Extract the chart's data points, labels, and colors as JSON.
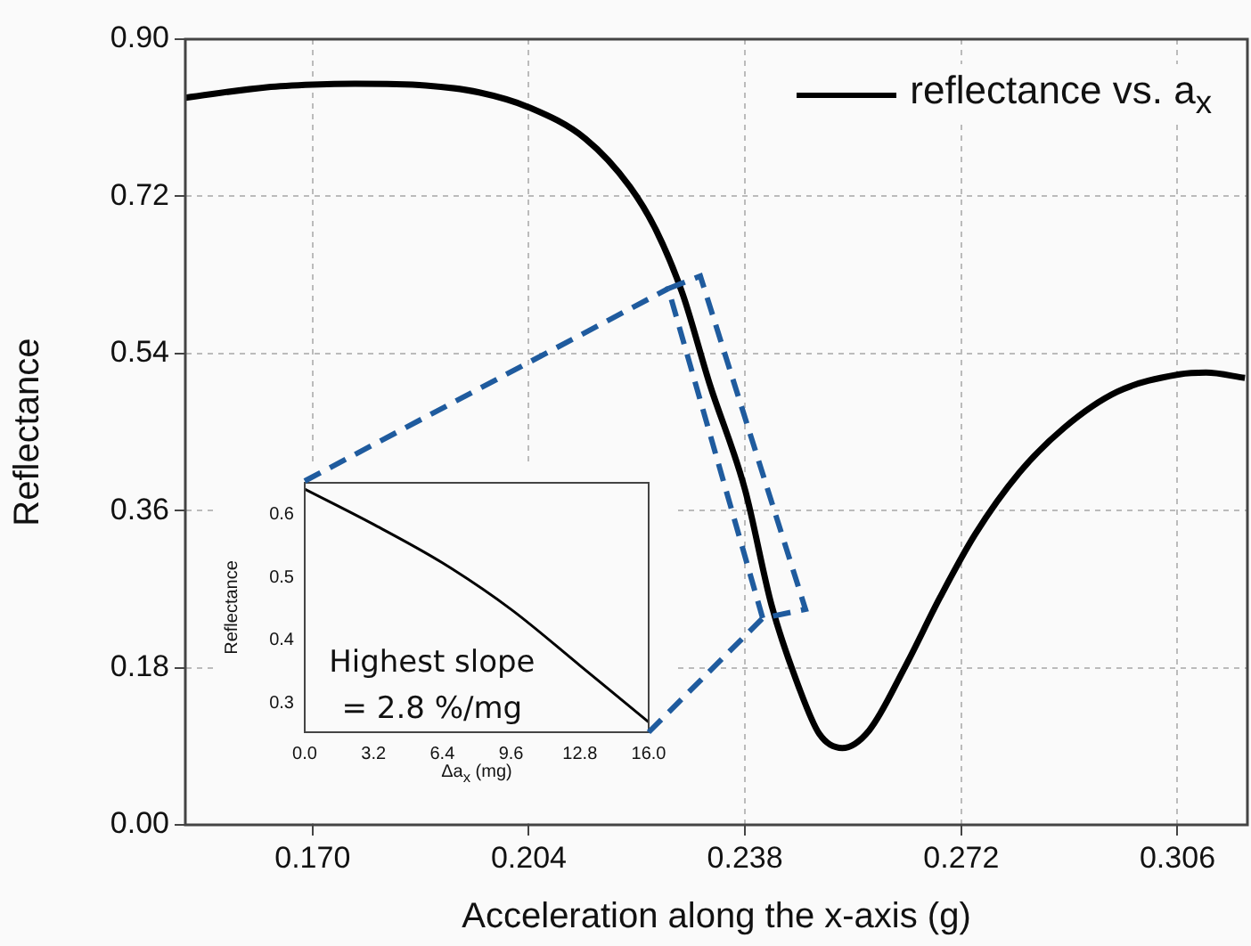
{
  "chart_data": [
    {
      "type": "line",
      "xlabel": "Acceleration along the x-axis (g)",
      "ylabel": "Reflectance",
      "xlim": [
        0.15,
        0.317
      ],
      "ylim": [
        0,
        0.9
      ],
      "xticks": [
        {
          "value": 0.17,
          "label": "0.170"
        },
        {
          "value": 0.204,
          "label": "0.204"
        },
        {
          "value": 0.238,
          "label": "0.238"
        },
        {
          "value": 0.272,
          "label": "0.272"
        },
        {
          "value": 0.306,
          "label": "0.306"
        }
      ],
      "yticks": [
        {
          "value": 0,
          "label": "0.00"
        },
        {
          "value": 0.18,
          "label": "0.18"
        },
        {
          "value": 0.36,
          "label": "0.36"
        },
        {
          "value": 0.54,
          "label": "0.54"
        },
        {
          "value": 0.72,
          "label": "0.72"
        },
        {
          "value": 0.9,
          "label": "0.90"
        }
      ],
      "grid": true,
      "legend": "top right",
      "line_style": "solid",
      "marker": "none",
      "series": [
        {
          "name": "reflectance vs. a$_{x}$",
          "color": "#000000",
          "x": [
            0.15,
            0.1628,
            0.17,
            0.1767,
            0.1878,
            0.1962,
            0.204,
            0.2129,
            0.2199,
            0.2241,
            0.2282,
            0.2324,
            0.238,
            0.2422,
            0.2464,
            0.2497,
            0.2533,
            0.2575,
            0.2631,
            0.2687,
            0.2742,
            0.2812,
            0.2882,
            0.2965,
            0.3063,
            0.3105,
            0.3166
          ],
          "values": [
            0.833,
            0.845,
            0.848,
            0.849,
            0.847,
            0.839,
            0.822,
            0.786,
            0.731,
            0.68,
            0.608,
            0.506,
            0.384,
            0.251,
            0.159,
            0.104,
            0.088,
            0.108,
            0.18,
            0.261,
            0.333,
            0.404,
            0.455,
            0.496,
            0.516,
            0.518,
            0.512
          ]
        }
      ]
    },
    {
      "type": "line",
      "xlabel": "Δa$_{x}$ (mg)",
      "ylabel": "Reflectance",
      "xlim": [
        0,
        16
      ],
      "ylim": [
        0.254,
        0.65
      ],
      "xticks": [
        {
          "value": 0,
          "label": "0.0"
        },
        {
          "value": 3.2,
          "label": "3.2"
        },
        {
          "value": 6.4,
          "label": "6.4"
        },
        {
          "value": 9.6,
          "label": "9.6"
        },
        {
          "value": 12.8,
          "label": "12.8"
        },
        {
          "value": 16,
          "label": "16.0"
        }
      ],
      "yticks": [
        0.3,
        0.4,
        0.5,
        0.6
      ],
      "grid": false,
      "line_style": "solid",
      "marker": "none",
      "annotations": [
        "Highest slope",
        "= 2.8 %/mg"
      ],
      "series": [
        {
          "color": "#000000",
          "x": [
            0,
            3.2,
            6.4,
            9.6,
            12.8,
            16
          ],
          "values": [
            0.64,
            0.584,
            0.523,
            0.449,
            0.36,
            0.27
          ]
        }
      ]
    }
  ]
}
